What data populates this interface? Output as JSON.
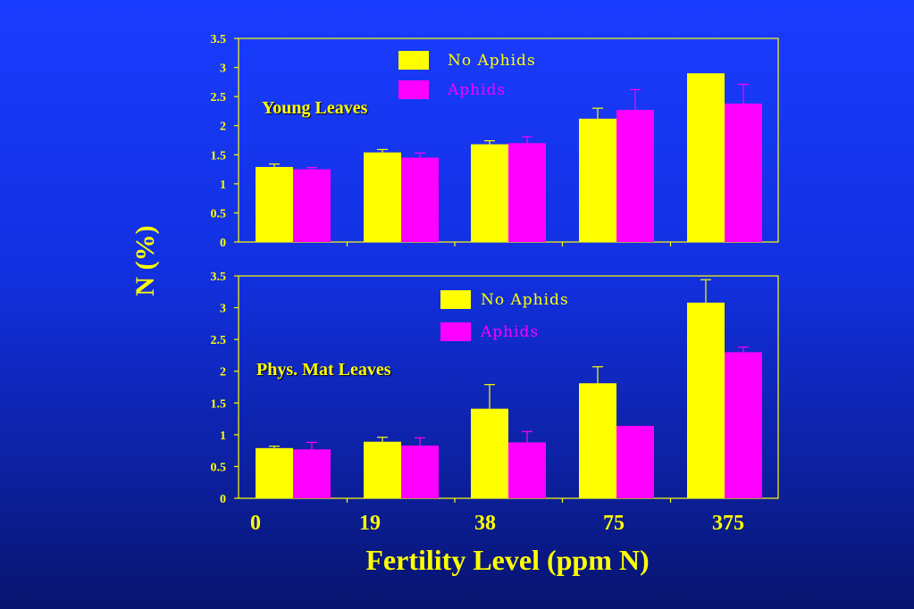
{
  "colors": {
    "no_aphids": "#ffff00",
    "aphids": "#ff00ff",
    "axis": "#ffff00"
  },
  "chart_data": {
    "type": "bar",
    "categories": [
      "0",
      "19",
      "38",
      "75",
      "375"
    ],
    "xlabel": "Fertility Level (ppm N)",
    "ylabel": "N (%)",
    "ylim": [
      0,
      3.5
    ],
    "yticks": [
      "0",
      "0.5",
      "1",
      "1.5",
      "2",
      "2.5",
      "3",
      "3.5"
    ],
    "legend": [
      "No Aphids",
      "Aphids"
    ],
    "legend_position": "top-right",
    "panels": [
      {
        "label": "Young Leaves",
        "series": [
          {
            "name": "No Aphids",
            "values": [
              1.29,
              1.54,
              1.68,
              2.12,
              2.9
            ],
            "errors": [
              0.05,
              0.05,
              0.06,
              0.18,
              0
            ]
          },
          {
            "name": "Aphids",
            "values": [
              1.25,
              1.45,
              1.7,
              2.27,
              2.38
            ],
            "errors": [
              0.03,
              0.08,
              0.11,
              0.35,
              0.33
            ]
          }
        ]
      },
      {
        "label": "Phys. Mat Leaves",
        "series": [
          {
            "name": "No Aphids",
            "values": [
              0.79,
              0.89,
              1.41,
              1.81,
              3.08
            ],
            "errors": [
              0.03,
              0.07,
              0.38,
              0.26,
              0.36
            ]
          },
          {
            "name": "Aphids",
            "values": [
              0.77,
              0.83,
              0.88,
              1.14,
              2.3
            ],
            "errors": [
              0.11,
              0.12,
              0.17,
              0,
              0.08
            ]
          }
        ]
      }
    ]
  }
}
